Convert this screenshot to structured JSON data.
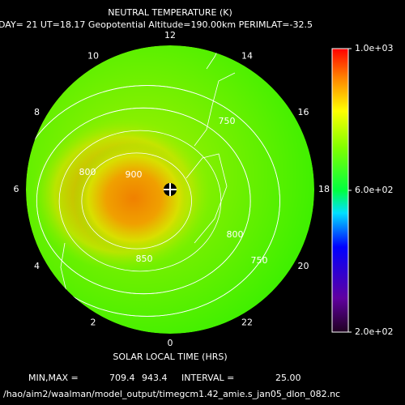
{
  "chart_data": {
    "type": "polar-contour",
    "title": "NEUTRAL TEMPERATURE (K)",
    "subtitle": "DAY= 21 UT=18.17 Geopotential Altitude=190.00km PERIMLAT=-32.5",
    "x_label": "SOLAR LOCAL TIME (HRS)",
    "hour_ticks": [
      12,
      14,
      16,
      18,
      20,
      22,
      0,
      2,
      4,
      6,
      8,
      10
    ],
    "clim": [
      200,
      1000
    ],
    "cticks": [
      {
        "value": 1000,
        "label": "1.0e+03"
      },
      {
        "value": 600,
        "label": "6.0e+02"
      },
      {
        "value": 200,
        "label": "2.0e+02"
      }
    ],
    "contour_labels": [
      900,
      850,
      800,
      750,
      800,
      750
    ],
    "min_max_label": "MIN,MAX =",
    "min": 709.4,
    "max": 943.4,
    "interval_label": "INTERVAL =",
    "interval": {
      "value": 25,
      "label": "25.00"
    },
    "file": "/hao/aim2/waalman/model_output/timegcm1.42_amie.s_jan05_dlon_082.nc"
  }
}
